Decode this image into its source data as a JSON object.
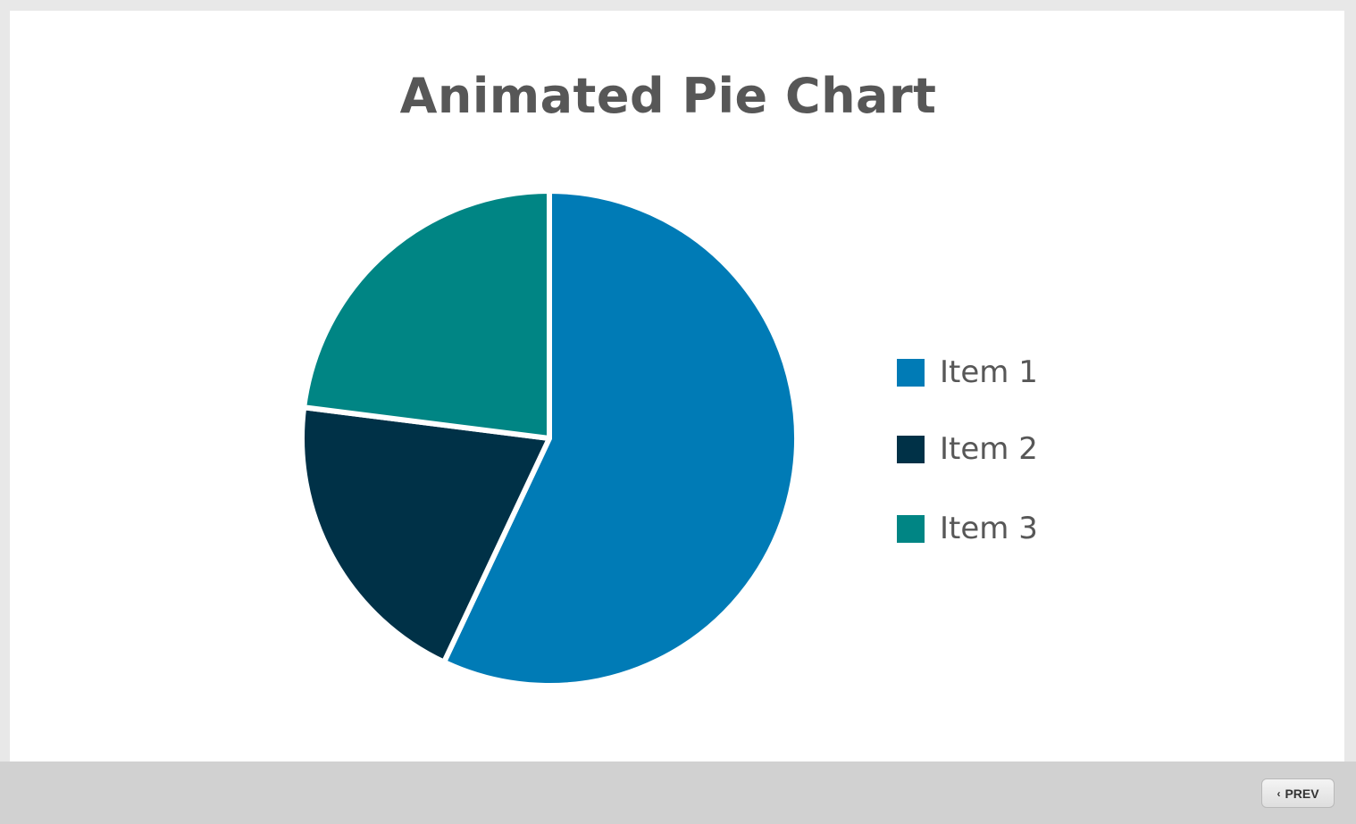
{
  "chart_data": {
    "type": "pie",
    "title": "Animated Pie Chart",
    "slices": [
      {
        "label": "Item 1",
        "value": 57,
        "color": "#007bb6"
      },
      {
        "label": "Item 2",
        "value": 20,
        "color": "#003147"
      },
      {
        "label": "Item 3",
        "value": 23,
        "color": "#008584"
      }
    ],
    "start": "12 o'clock",
    "legend_position": "right"
  },
  "footer": {
    "prev_label": "PREV",
    "prev_icon": "chevron-left-icon"
  }
}
